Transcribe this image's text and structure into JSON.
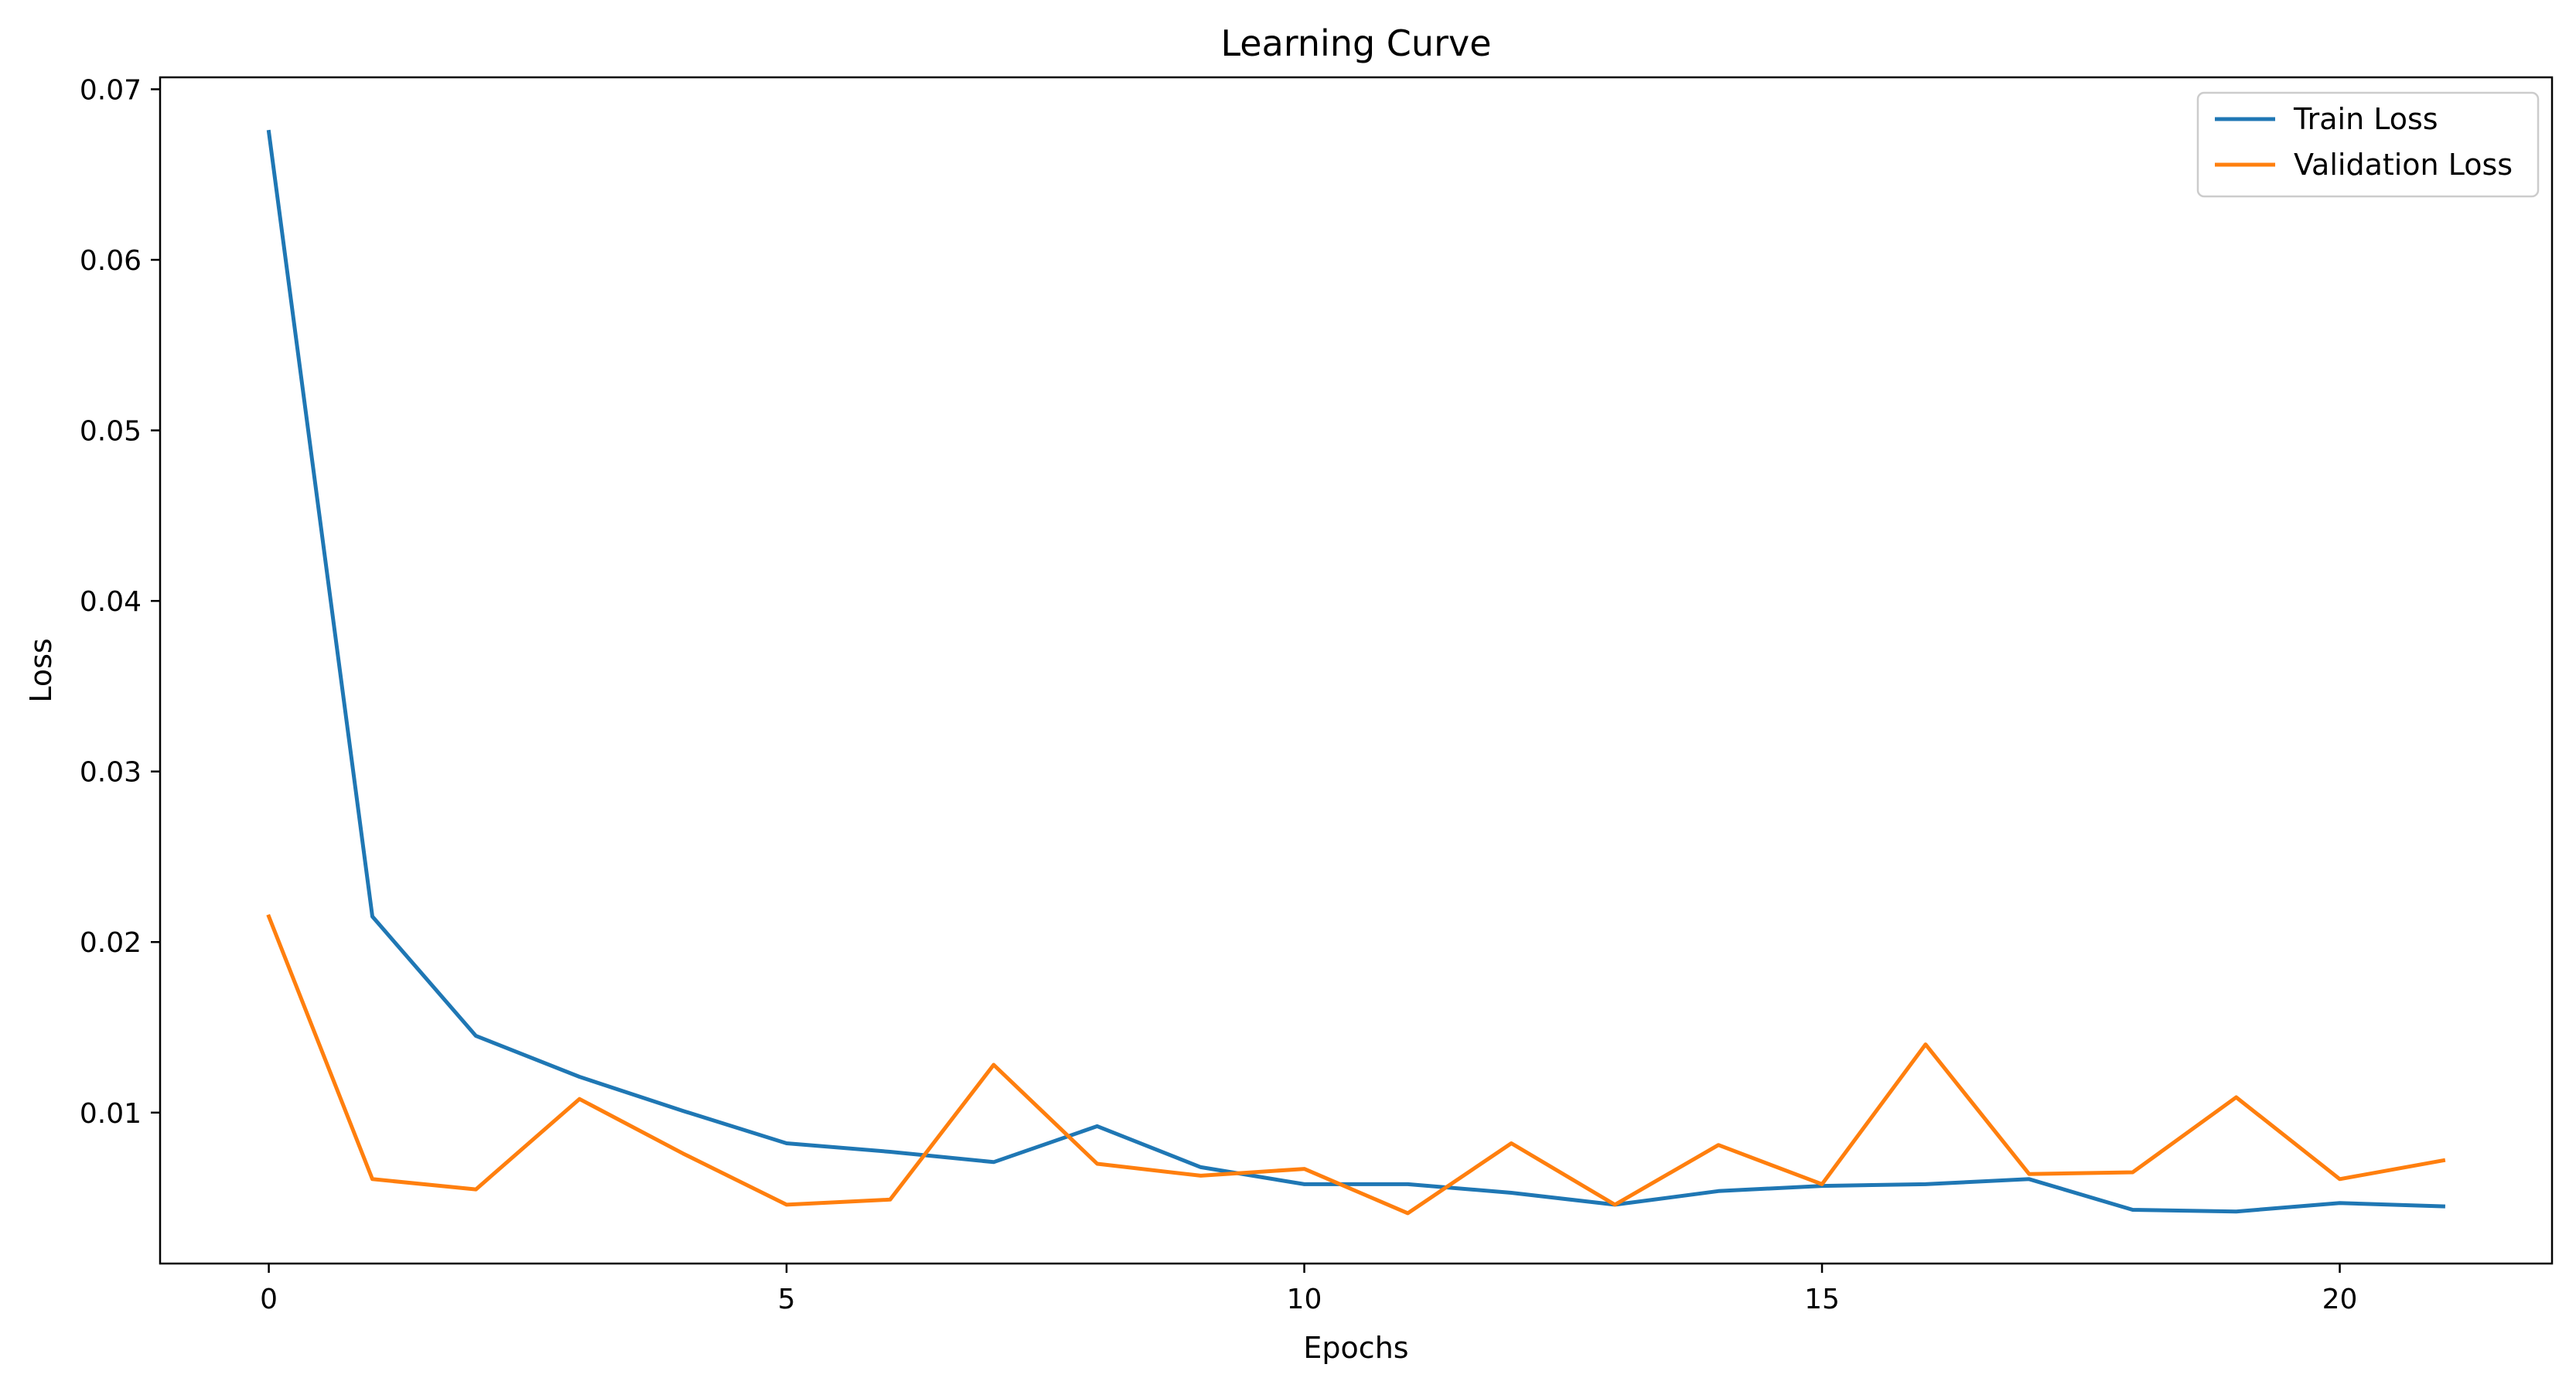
{
  "chart_data": {
    "type": "line",
    "title": "Learning Curve",
    "xlabel": "Epochs",
    "ylabel": "Loss",
    "xlim": [
      -1.05,
      22.05
    ],
    "ylim": [
      0.00115,
      0.0707
    ],
    "xticks": [
      0,
      5,
      10,
      15,
      20
    ],
    "yticks": [
      0.01,
      0.02,
      0.03,
      0.04,
      0.05,
      0.06,
      0.07
    ],
    "ytick_labels": [
      "0.01",
      "0.02",
      "0.03",
      "0.04",
      "0.05",
      "0.06",
      "0.07"
    ],
    "grid": false,
    "legend_position": "upper right",
    "x": [
      0,
      1,
      2,
      3,
      4,
      5,
      6,
      7,
      8,
      9,
      10,
      11,
      12,
      13,
      14,
      15,
      16,
      17,
      18,
      19,
      20,
      21
    ],
    "series": [
      {
        "name": "Train Loss",
        "color": "#1f77b4",
        "values": [
          0.0675,
          0.0215,
          0.0145,
          0.0121,
          0.0101,
          0.0082,
          0.0077,
          0.0071,
          0.0092,
          0.0068,
          0.0058,
          0.0058,
          0.0053,
          0.0046,
          0.0054,
          0.0057,
          0.0058,
          0.0061,
          0.0043,
          0.0042,
          0.0047,
          0.0045
        ]
      },
      {
        "name": "Validation Loss",
        "color": "#ff7f0e",
        "values": [
          0.0215,
          0.0061,
          0.0055,
          0.0108,
          0.0076,
          0.0046,
          0.0049,
          0.0128,
          0.007,
          0.0063,
          0.0067,
          0.0041,
          0.0082,
          0.0046,
          0.0081,
          0.0058,
          0.014,
          0.0064,
          0.0065,
          0.0109,
          0.0061,
          0.0072
        ]
      }
    ]
  }
}
